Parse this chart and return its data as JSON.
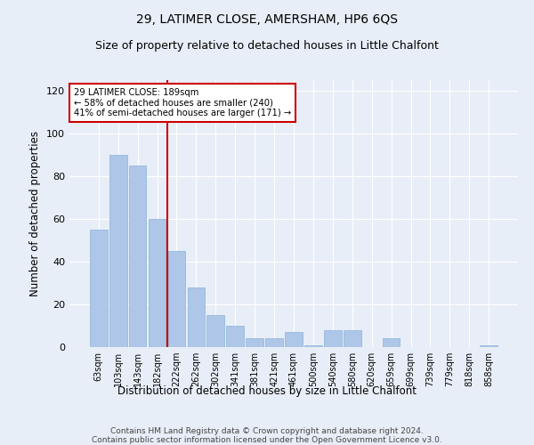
{
  "title": "29, LATIMER CLOSE, AMERSHAM, HP6 6QS",
  "subtitle": "Size of property relative to detached houses in Little Chalfont",
  "xlabel": "Distribution of detached houses by size in Little Chalfont",
  "ylabel": "Number of detached properties",
  "categories": [
    "63sqm",
    "103sqm",
    "143sqm",
    "182sqm",
    "222sqm",
    "262sqm",
    "302sqm",
    "341sqm",
    "381sqm",
    "421sqm",
    "461sqm",
    "500sqm",
    "540sqm",
    "580sqm",
    "620sqm",
    "659sqm",
    "699sqm",
    "739sqm",
    "779sqm",
    "818sqm",
    "858sqm"
  ],
  "values": [
    55,
    90,
    85,
    60,
    45,
    28,
    15,
    10,
    4,
    4,
    7,
    1,
    8,
    8,
    0,
    4,
    0,
    0,
    0,
    0,
    1
  ],
  "bar_color": "#aec6e8",
  "bar_edge_color": "#8ab4d8",
  "vline_x": 3.5,
  "vline_color": "#cc0000",
  "annotation_text": "29 LATIMER CLOSE: 189sqm\n← 58% of detached houses are smaller (240)\n41% of semi-detached houses are larger (171) →",
  "annotation_box_color": "white",
  "annotation_box_edge_color": "#cc0000",
  "ylim": [
    0,
    125
  ],
  "yticks": [
    0,
    20,
    40,
    60,
    80,
    100,
    120
  ],
  "bg_color": "#e8eef7",
  "plot_bg_color": "#e8eef7",
  "footer": "Contains HM Land Registry data © Crown copyright and database right 2024.\nContains public sector information licensed under the Open Government Licence v3.0.",
  "title_fontsize": 10,
  "subtitle_fontsize": 9,
  "xlabel_fontsize": 8.5,
  "ylabel_fontsize": 8.5
}
